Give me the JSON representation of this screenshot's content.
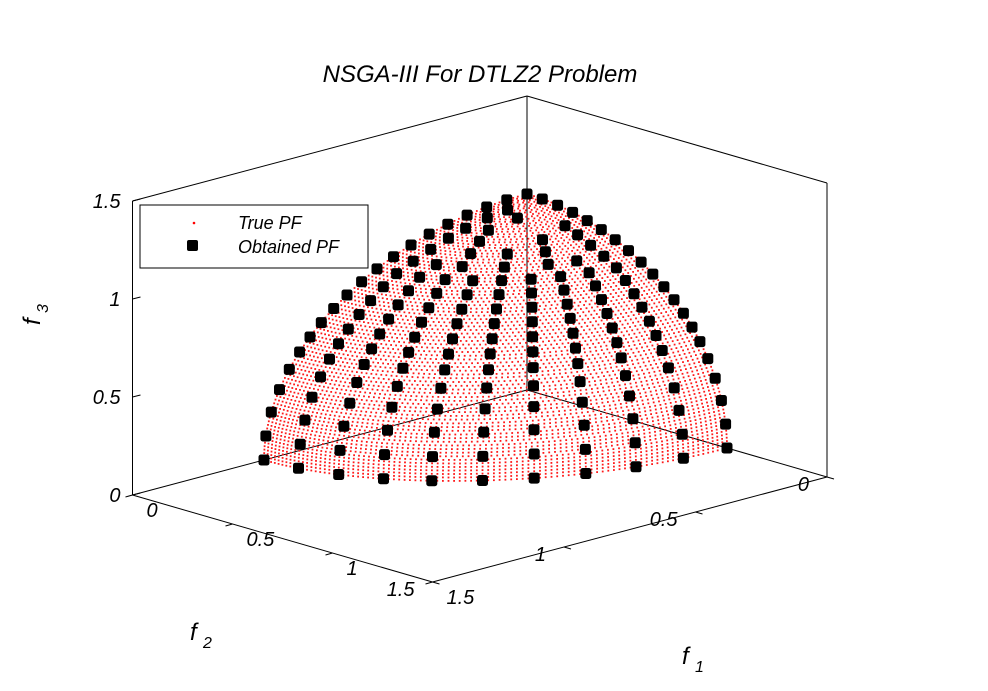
{
  "chart_data": {
    "type": "scatter",
    "dimensions": 3,
    "title": "NSGA-III For DTLZ2 Problem",
    "xlabel": "f",
    "xlabel_sub": "1",
    "ylabel": "f",
    "ylabel_sub": "2",
    "zlabel": "f",
    "zlabel_sub": "3",
    "xlim": [
      0,
      1.5
    ],
    "ylim": [
      0,
      1.5
    ],
    "zlim": [
      0,
      1.5
    ],
    "xticks": [
      "0",
      "0.5",
      "1",
      "1.5"
    ],
    "yticks": [
      "0",
      "0.5",
      "1",
      "1.5"
    ],
    "zticks": [
      "0",
      "0.5",
      "1",
      "1.5"
    ],
    "grid": false,
    "box": true,
    "legend": {
      "position": "top-left",
      "entries": [
        "True PF",
        "Obtained PF"
      ]
    },
    "series": [
      {
        "name": "True PF",
        "kind": "surface",
        "equation": "f1^2 + f2^2 + f3^2 = 1, f1, f2, f3 >= 0",
        "color": "#ff0000",
        "marker": "point"
      },
      {
        "name": "Obtained PF",
        "kind": "points",
        "color": "#000000",
        "marker": "filled-square",
        "points": [
          [
            0.0,
            0.0,
            1.0
          ],
          [
            0.0,
            0.0767,
            0.9971
          ],
          [
            0.0767,
            0.0,
            0.9971
          ],
          [
            0.0,
            0.1531,
            0.9882
          ],
          [
            0.0764,
            0.1323,
            0.9883
          ],
          [
            0.1531,
            0.0,
            0.9882
          ],
          [
            0.0,
            0.2279,
            0.9737
          ],
          [
            0.0761,
            0.209,
            0.975
          ],
          [
            0.1522,
            0.1522,
            0.9765
          ],
          [
            0.2279,
            0.0,
            0.9737
          ],
          [
            0.0,
            0.3011,
            0.9536
          ],
          [
            0.0784,
            0.2931,
            0.9529
          ],
          [
            0.1509,
            0.2614,
            0.9535
          ],
          [
            0.2931,
            0.0784,
            0.9529
          ],
          [
            0.3011,
            0.0,
            0.9536
          ],
          [
            0.0,
            0.3717,
            0.9283
          ],
          [
            0.0832,
            0.3623,
            0.9283
          ],
          [
            0.1858,
            0.3219,
            0.9283
          ],
          [
            0.3219,
            0.1858,
            0.9283
          ],
          [
            0.3623,
            0.0832,
            0.9283
          ],
          [
            0.3717,
            0.0,
            0.9283
          ],
          [
            0.0,
            0.4411,
            0.8975
          ],
          [
            0.087,
            0.4325,
            0.8975
          ],
          [
            0.2205,
            0.382,
            0.8975
          ],
          [
            0.312,
            0.312,
            0.8975
          ],
          [
            0.382,
            0.2205,
            0.8975
          ],
          [
            0.4325,
            0.087,
            0.8975
          ],
          [
            0.4411,
            0.0,
            0.8975
          ],
          [
            0.0,
            0.5075,
            0.8616
          ],
          [
            0.0881,
            0.4998,
            0.8616
          ],
          [
            0.1736,
            0.4769,
            0.8616
          ],
          [
            0.2538,
            0.4395,
            0.8616
          ],
          [
            0.3589,
            0.3589,
            0.8616
          ],
          [
            0.4395,
            0.2538,
            0.8616
          ],
          [
            0.4769,
            0.1736,
            0.8616
          ],
          [
            0.4998,
            0.0881,
            0.8616
          ],
          [
            0.5075,
            0.0,
            0.8616
          ],
          [
            0.0,
            0.5703,
            0.8214
          ],
          [
            0.0887,
            0.5634,
            0.8214
          ],
          [
            0.1762,
            0.5424,
            0.8214
          ],
          [
            0.2588,
            0.5082,
            0.8214
          ],
          [
            0.3352,
            0.4614,
            0.8214
          ],
          [
            0.4033,
            0.4033,
            0.8214
          ],
          [
            0.4614,
            0.3352,
            0.8214
          ],
          [
            0.5082,
            0.2588,
            0.8214
          ],
          [
            0.5424,
            0.1762,
            0.8214
          ],
          [
            0.5634,
            0.0887,
            0.8214
          ],
          [
            0.5703,
            0.0,
            0.8214
          ],
          [
            0.0,
            0.629,
            0.7774
          ],
          [
            0.0983,
            0.6213,
            0.7774
          ],
          [
            0.1944,
            0.5983,
            0.7774
          ],
          [
            0.2856,
            0.5605,
            0.7774
          ],
          [
            0.3697,
            0.5089,
            0.7774
          ],
          [
            0.4448,
            0.4448,
            0.7774
          ],
          [
            0.5089,
            0.3697,
            0.7774
          ],
          [
            0.5605,
            0.2856,
            0.7774
          ],
          [
            0.5983,
            0.1944,
            0.7774
          ],
          [
            0.6213,
            0.0983,
            0.7774
          ],
          [
            0.629,
            0.0,
            0.7774
          ],
          [
            0.0,
            0.6843,
            0.7292
          ],
          [
            0.107,
            0.6759,
            0.7292
          ],
          [
            0.2115,
            0.6508,
            0.7292
          ],
          [
            0.3107,
            0.6097,
            0.7292
          ],
          [
            0.4022,
            0.5536,
            0.7292
          ],
          [
            0.4839,
            0.4839,
            0.7292
          ],
          [
            0.5536,
            0.4022,
            0.7292
          ],
          [
            0.6097,
            0.3107,
            0.7292
          ],
          [
            0.6508,
            0.2115,
            0.7292
          ],
          [
            0.6759,
            0.107,
            0.7292
          ],
          [
            0.6843,
            0.0,
            0.7292
          ],
          [
            0.0,
            0.7348,
            0.6783
          ],
          [
            0.1149,
            0.7258,
            0.6783
          ],
          [
            0.2271,
            0.6988,
            0.6783
          ],
          [
            0.3336,
            0.6547,
            0.6783
          ],
          [
            0.4319,
            0.5945,
            0.6783
          ],
          [
            0.5196,
            0.5196,
            0.6783
          ],
          [
            0.5945,
            0.4319,
            0.6783
          ],
          [
            0.6547,
            0.3336,
            0.6783
          ],
          [
            0.6988,
            0.2271,
            0.6783
          ],
          [
            0.7258,
            0.1149,
            0.6783
          ],
          [
            0.7348,
            0.0,
            0.6783
          ],
          [
            0.0,
            0.7822,
            0.623
          ],
          [
            0.1223,
            0.7726,
            0.623
          ],
          [
            0.2417,
            0.7439,
            0.623
          ],
          [
            0.3551,
            0.697,
            0.623
          ],
          [
            0.4598,
            0.6328,
            0.623
          ],
          [
            0.5531,
            0.5531,
            0.623
          ],
          [
            0.6328,
            0.4598,
            0.623
          ],
          [
            0.697,
            0.3551,
            0.623
          ],
          [
            0.7439,
            0.2417,
            0.623
          ],
          [
            0.7726,
            0.1223,
            0.623
          ],
          [
            0.7822,
            0.0,
            0.623
          ],
          [
            0.0,
            0.825,
            0.5652
          ],
          [
            0.1291,
            0.8148,
            0.5652
          ],
          [
            0.2549,
            0.7846,
            0.5652
          ],
          [
            0.3745,
            0.7351,
            0.5652
          ],
          [
            0.4849,
            0.6674,
            0.5652
          ],
          [
            0.5834,
            0.5834,
            0.5652
          ],
          [
            0.6674,
            0.4849,
            0.5652
          ],
          [
            0.7351,
            0.3745,
            0.5652
          ],
          [
            0.7846,
            0.2549,
            0.5652
          ],
          [
            0.8148,
            0.1291,
            0.5652
          ],
          [
            0.825,
            0.0,
            0.5652
          ],
          [
            0.0,
            0.8645,
            0.5027
          ],
          [
            0.1352,
            0.8539,
            0.5027
          ],
          [
            0.2671,
            0.8222,
            0.5027
          ],
          [
            0.3925,
            0.7703,
            0.5027
          ],
          [
            0.5081,
            0.6994,
            0.5027
          ],
          [
            0.6113,
            0.6113,
            0.5027
          ],
          [
            0.6994,
            0.5081,
            0.5027
          ],
          [
            0.7703,
            0.3925,
            0.5027
          ],
          [
            0.8222,
            0.2671,
            0.5027
          ],
          [
            0.8539,
            0.1352,
            0.5027
          ],
          [
            0.8645,
            0.0,
            0.5027
          ],
          [
            0.0,
            0.9039,
            0.4277
          ],
          [
            0.1414,
            0.8928,
            0.4277
          ],
          [
            0.2793,
            0.8597,
            0.4277
          ],
          [
            0.4104,
            0.8054,
            0.4277
          ],
          [
            0.5313,
            0.7313,
            0.4277
          ],
          [
            0.6392,
            0.6392,
            0.4277
          ],
          [
            0.7313,
            0.5313,
            0.4277
          ],
          [
            0.8054,
            0.4104,
            0.4277
          ],
          [
            0.8597,
            0.2793,
            0.4277
          ],
          [
            0.8928,
            0.1414,
            0.4277
          ],
          [
            0.9039,
            0.0,
            0.4277
          ],
          [
            0.0,
            0.9411,
            0.3382
          ],
          [
            0.1472,
            0.9295,
            0.3382
          ],
          [
            0.2908,
            0.895,
            0.3382
          ],
          [
            0.4273,
            0.8385,
            0.3382
          ],
          [
            0.5532,
            0.7613,
            0.3382
          ],
          [
            0.6655,
            0.6655,
            0.3382
          ],
          [
            0.7613,
            0.5532,
            0.3382
          ],
          [
            0.8385,
            0.4273,
            0.3382
          ],
          [
            0.895,
            0.2908,
            0.3382
          ],
          [
            0.9295,
            0.1472,
            0.3382
          ],
          [
            0.9411,
            0.0,
            0.3382
          ],
          [
            0.0,
            0.9722,
            0.2343
          ],
          [
            0.1521,
            0.9602,
            0.2343
          ],
          [
            0.3004,
            0.9246,
            0.2343
          ],
          [
            0.4414,
            0.8662,
            0.2343
          ],
          [
            0.5714,
            0.7865,
            0.2343
          ],
          [
            0.6874,
            0.6874,
            0.2343
          ],
          [
            0.7865,
            0.5714,
            0.2343
          ],
          [
            0.8662,
            0.4414,
            0.2343
          ],
          [
            0.9246,
            0.3004,
            0.2343
          ],
          [
            0.9602,
            0.1521,
            0.2343
          ],
          [
            0.9722,
            0.0,
            0.2343
          ],
          [
            0.0,
            0.9928,
            0.1197
          ],
          [
            0.1553,
            0.9806,
            0.1197
          ],
          [
            0.3068,
            0.9442,
            0.1197
          ],
          [
            0.4507,
            0.8846,
            0.1197
          ],
          [
            0.5835,
            0.8032,
            0.1197
          ],
          [
            0.702,
            0.702,
            0.1197
          ],
          [
            0.8032,
            0.5835,
            0.1197
          ],
          [
            0.8846,
            0.4507,
            0.1197
          ],
          [
            0.9442,
            0.3068,
            0.1197
          ],
          [
            0.9806,
            0.1553,
            0.1197
          ],
          [
            0.9928,
            0.0,
            0.1197
          ],
          [
            0.0,
            1.0,
            0.0
          ],
          [
            0.1564,
            0.9877,
            0.0
          ],
          [
            0.309,
            0.9511,
            0.0
          ],
          [
            0.454,
            0.891,
            0.0
          ],
          [
            0.5878,
            0.809,
            0.0
          ],
          [
            0.7071,
            0.7071,
            0.0
          ],
          [
            0.809,
            0.5878,
            0.0
          ],
          [
            0.891,
            0.454,
            0.0
          ],
          [
            0.9511,
            0.309,
            0.0
          ],
          [
            0.9877,
            0.1564,
            0.0
          ],
          [
            1.0,
            0.0,
            0.0
          ]
        ]
      }
    ]
  }
}
